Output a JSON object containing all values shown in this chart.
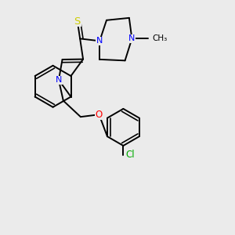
{
  "background_color": "#ebebeb",
  "bond_color": "#000000",
  "atom_colors": {
    "N": "#0000ff",
    "O": "#ff0000",
    "S": "#cccc00",
    "Cl": "#00aa00",
    "C": "#000000"
  },
  "figsize": [
    3.0,
    3.0
  ],
  "dpi": 100
}
